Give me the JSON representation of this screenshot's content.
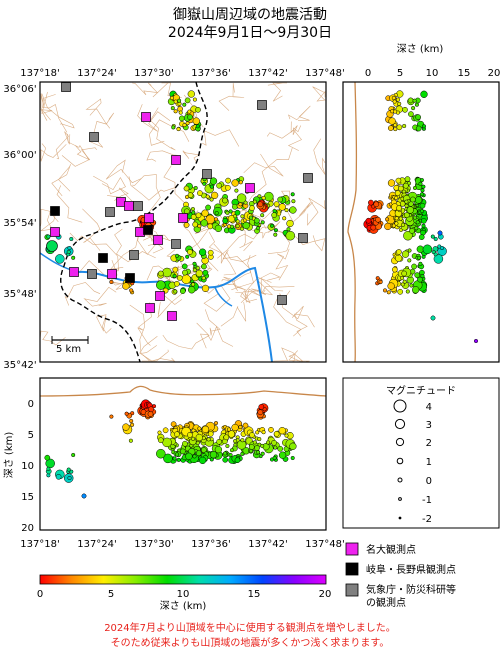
{
  "title": {
    "line1": "御嶽山周辺域の地震活動",
    "line2": "2024年9月1日～9月30日"
  },
  "axes": {
    "lon_ticks": [
      "137°18'",
      "137°24'",
      "137°30'",
      "137°36'",
      "137°42'",
      "137°48'"
    ],
    "lat_ticks": [
      "36°06'",
      "36°00'",
      "35°54'",
      "35°48'",
      "35°42'"
    ],
    "depth_top_label": "深さ (km)",
    "depth_top_ticks": [
      "0",
      "5",
      "10",
      "15",
      "20"
    ],
    "depth_side_label": "深さ (km)",
    "depth_side_ticks": [
      "0",
      "5",
      "10",
      "15",
      "20"
    ],
    "scale_bar": "5 km"
  },
  "magnitude_legend": {
    "title": "マグニチュード",
    "levels": [
      "4",
      "3",
      "2",
      "1",
      "0",
      "-1",
      "-2"
    ]
  },
  "station_legend": [
    {
      "label": "名大観測点",
      "color": "#ee22ee"
    },
    {
      "label": "岐阜・長野県観測点",
      "color": "#000000"
    },
    {
      "label": "気象庁・防災科研等\nの観測点",
      "color": "#808080"
    }
  ],
  "colorbar": {
    "label": "深さ (km)",
    "ticks": [
      "0",
      "5",
      "10",
      "15",
      "20"
    ],
    "colors": [
      "#ff0000",
      "#ff8800",
      "#ffee00",
      "#88ee00",
      "#00dd00",
      "#00ddaa",
      "#00aaff",
      "#0044ff",
      "#8800ff",
      "#dd00ff"
    ]
  },
  "footnote": {
    "line1": "2024年7月より山頂域を中心に使用する観測点を増やしました。",
    "line2": "そのため従来よりも山頂域の地震が多くかつ浅く求まります。"
  }
}
